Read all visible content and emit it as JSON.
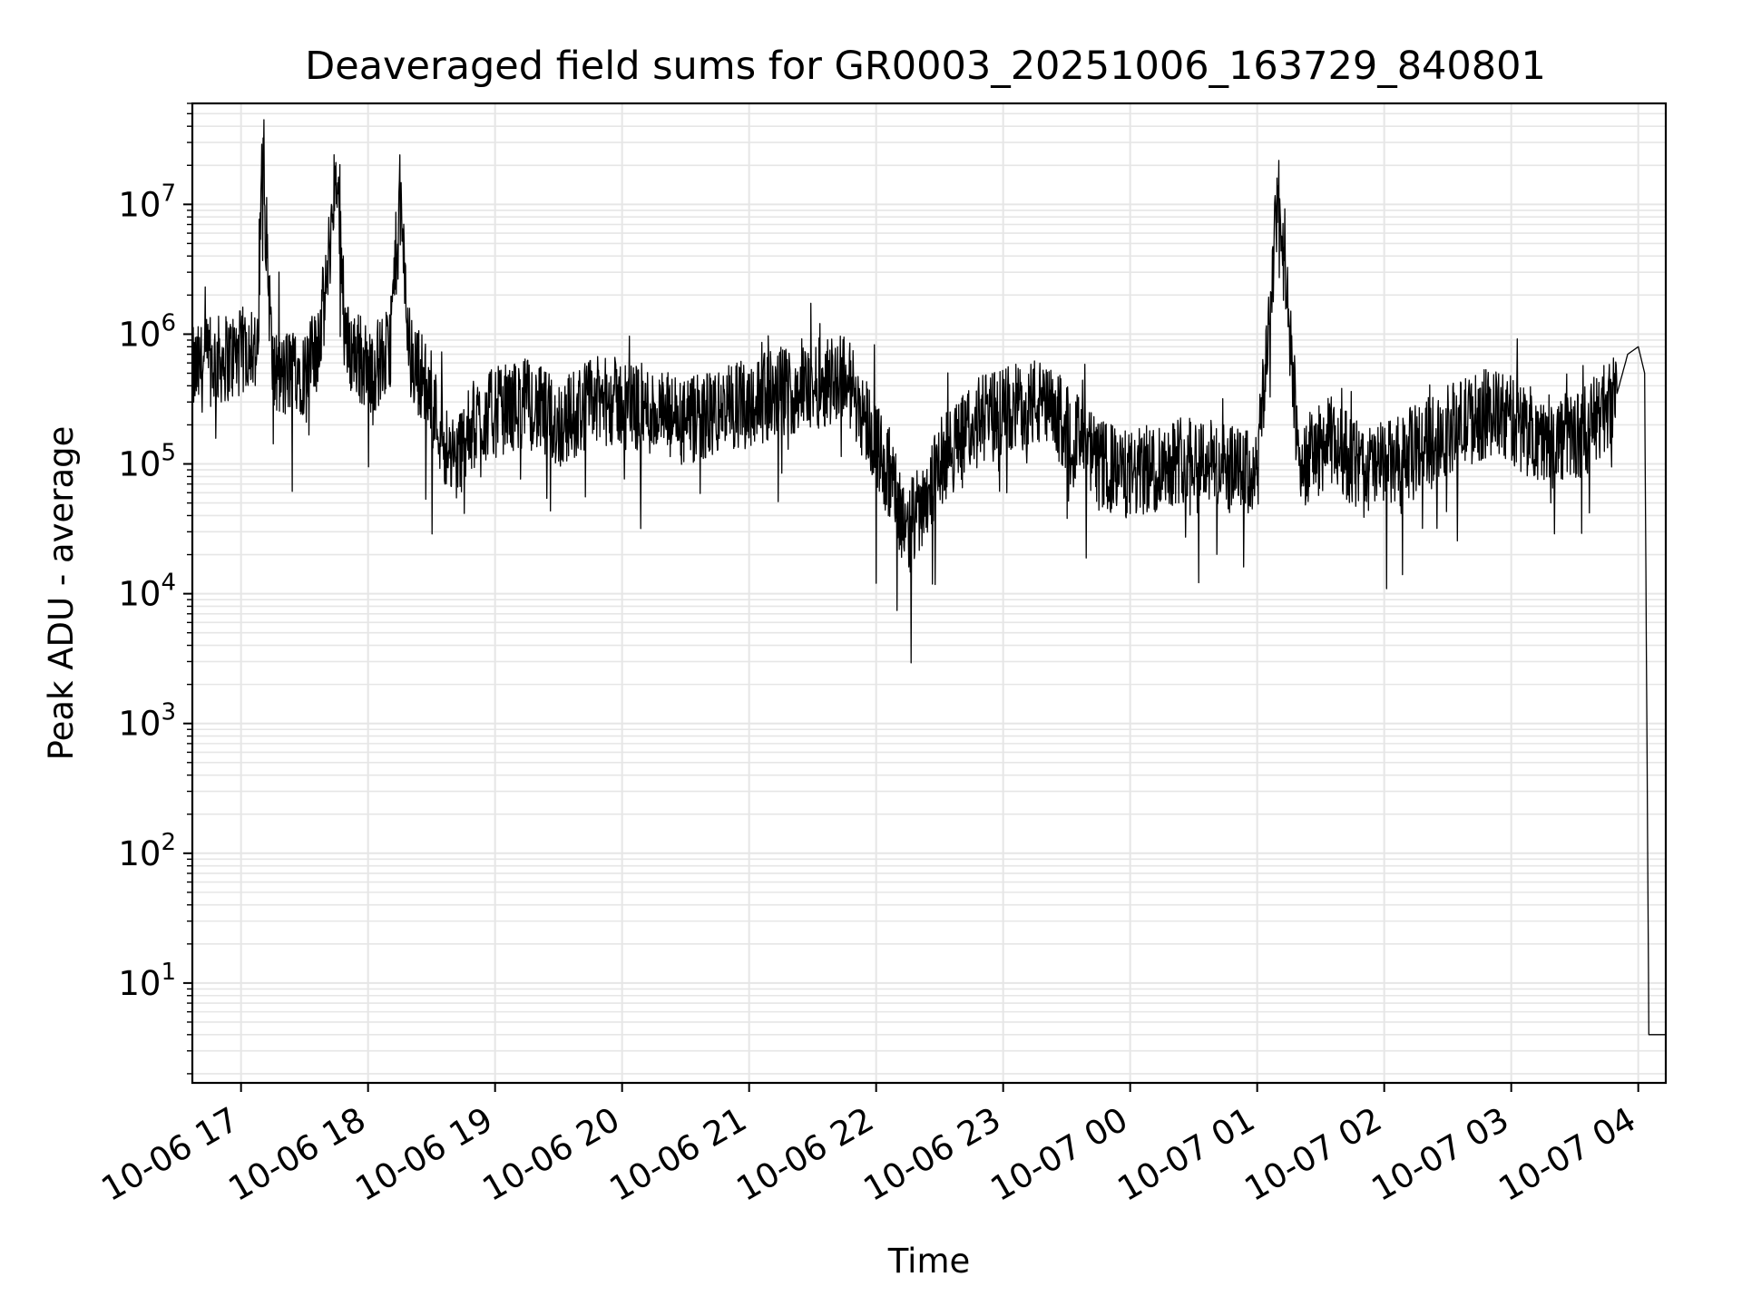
{
  "chart_data": {
    "type": "line",
    "title": "Deaveraged field sums for GR0003_20251006_163729_840801",
    "xlabel": "Time",
    "ylabel": "Peak ADU - average",
    "yscale": "log",
    "grid": true,
    "line_color": "#000000",
    "grid_color": "#e6e6e6",
    "xlim": [
      "2025-10-06 16:37",
      "2025-10-07 04:13"
    ],
    "ylim": [
      1.7,
      60000000
    ],
    "x_ticks": [
      "10-06 17",
      "10-06 18",
      "10-06 19",
      "10-06 20",
      "10-06 21",
      "10-06 22",
      "10-06 23",
      "10-07 00",
      "10-07 01",
      "10-07 02",
      "10-07 03",
      "10-07 04"
    ],
    "y_ticks": [
      {
        "base": "10",
        "exp": "1",
        "value": 10
      },
      {
        "base": "10",
        "exp": "2",
        "value": 100
      },
      {
        "base": "10",
        "exp": "3",
        "value": 1000
      },
      {
        "base": "10",
        "exp": "4",
        "value": 10000
      },
      {
        "base": "10",
        "exp": "5",
        "value": 100000
      },
      {
        "base": "10",
        "exp": "6",
        "value": 1000000
      },
      {
        "base": "10",
        "exp": "7",
        "value": 10000000
      }
    ],
    "series": [
      {
        "x": [
          "2025-10-06 16:37",
          "2025-10-06 16:45",
          "2025-10-06 16:52",
          "2025-10-06 17:00",
          "2025-10-06 17:05",
          "2025-10-06 17:08",
          "2025-10-06 17:10",
          "2025-10-06 17:15",
          "2025-10-06 17:20",
          "2025-10-06 17:25",
          "2025-10-06 17:30",
          "2025-10-06 17:35",
          "2025-10-06 17:40",
          "2025-10-06 17:45",
          "2025-10-06 17:50",
          "2025-10-06 17:55",
          "2025-10-06 18:00",
          "2025-10-06 18:05",
          "2025-10-06 18:10",
          "2025-10-06 18:15",
          "2025-10-06 18:20",
          "2025-10-06 18:25",
          "2025-10-06 18:30",
          "2025-10-06 18:40",
          "2025-10-06 18:50",
          "2025-10-06 19:00",
          "2025-10-06 19:15",
          "2025-10-06 19:30",
          "2025-10-06 19:45",
          "2025-10-06 20:00",
          "2025-10-06 20:15",
          "2025-10-06 20:30",
          "2025-10-06 20:45",
          "2025-10-06 21:00",
          "2025-10-06 21:15",
          "2025-10-06 21:30",
          "2025-10-06 21:45",
          "2025-10-06 22:00",
          "2025-10-06 22:15",
          "2025-10-06 22:30",
          "2025-10-06 22:45",
          "2025-10-06 23:00",
          "2025-10-06 23:15",
          "2025-10-06 23:30",
          "2025-10-06 23:45",
          "2025-10-07 00:00",
          "2025-10-07 00:15",
          "2025-10-07 00:30",
          "2025-10-07 00:45",
          "2025-10-07 01:00",
          "2025-10-07 01:10",
          "2025-10-07 01:20",
          "2025-10-07 01:35",
          "2025-10-07 01:50",
          "2025-10-07 02:05",
          "2025-10-07 02:20",
          "2025-10-07 02:35",
          "2025-10-07 02:50",
          "2025-10-07 03:05",
          "2025-10-07 03:20",
          "2025-10-07 03:35",
          "2025-10-07 03:50",
          "2025-10-07 03:55",
          "2025-10-07 04:00",
          "2025-10-07 04:03",
          "2025-10-07 04:05",
          "2025-10-07 04:13"
        ],
        "y": [
          500000,
          600000,
          650000,
          700000,
          900000,
          600000,
          28000000,
          500000,
          450000,
          600000,
          500000,
          700000,
          2000000,
          20000000,
          800000,
          700000,
          500000,
          600000,
          700000,
          11000000,
          600000,
          500000,
          300000,
          100000,
          200000,
          250000,
          300000,
          200000,
          300000,
          300000,
          250000,
          200000,
          250000,
          300000,
          350000,
          400000,
          500000,
          150000,
          30000,
          100000,
          200000,
          250000,
          300000,
          200000,
          100000,
          80000,
          100000,
          120000,
          90000,
          80000,
          12000000,
          100000,
          150000,
          90000,
          100000,
          150000,
          200000,
          250000,
          200000,
          150000,
          180000,
          350000,
          700000,
          800000,
          500000,
          4,
          4
        ]
      }
    ]
  }
}
